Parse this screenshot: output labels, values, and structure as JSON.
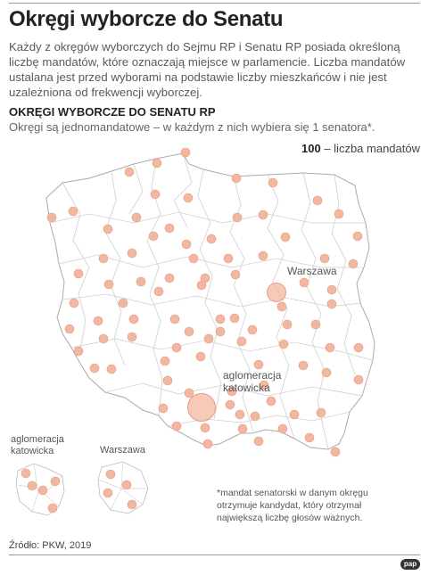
{
  "header": {
    "title": "Okręgi wyborcze do Senatu",
    "lead": "Każdy z okręgów wyborczych do Sejmu RP i Senatu RP posiada określoną liczbę mandatów, które oznaczają miejsce w parlamencie. Liczba mandatów ustalana jest przed wyborami na podstawie liczby mieszkańców i nie jest uzależniona od frekwencji wyborczej.",
    "subtitle": "OKRĘGI WYBORCZE DO SENATU RP",
    "subnote": "Okręgi są jednomandatowe – w każdym z nich wybiera się 1 senatora*."
  },
  "legend": {
    "value": "100",
    "label": "– liczba mandatów"
  },
  "map": {
    "label_warszawa": "Warszawa",
    "label_katowice_line1": "aglomeracja",
    "label_katowice_line2": "katowicka",
    "colors": {
      "dot": "#f3b7a0",
      "dot_stroke": "#e89a80",
      "border": "#c9c9c9",
      "outline": "#aaaaaa"
    }
  },
  "insets": {
    "katowice_line1": "aglomeracja",
    "katowice_line2": "katowicka",
    "warszawa": "Warszawa"
  },
  "footnote": "*mandat senatorski w danym okręgu otrzymuje kandydat, który otrzymał największą liczbę głosów ważnych.",
  "source": "Źródło: PKW, 2019",
  "logo": "pap"
}
